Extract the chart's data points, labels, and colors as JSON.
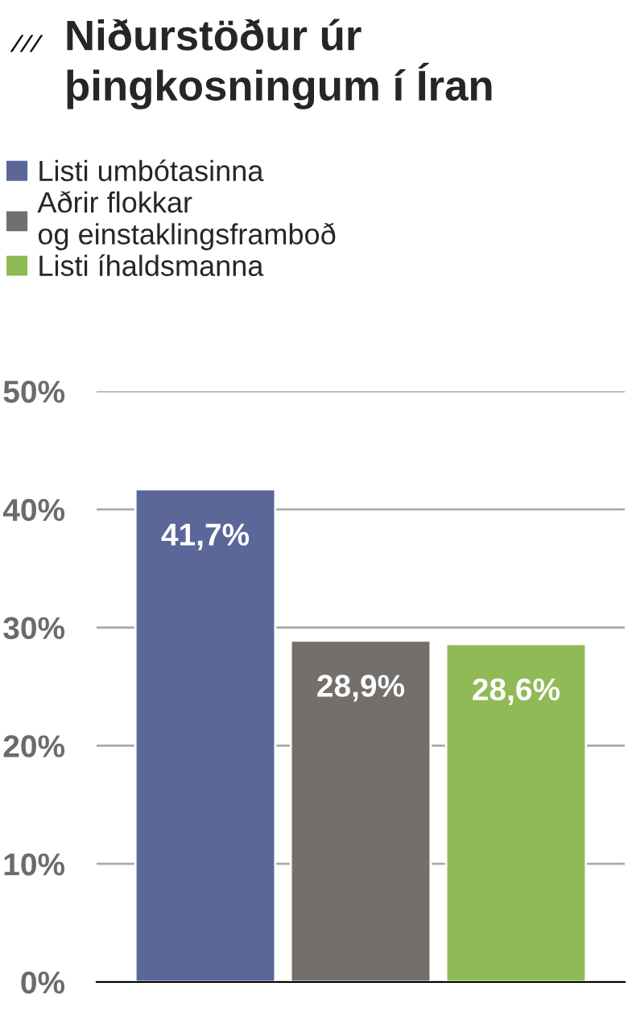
{
  "chart_data": {
    "type": "bar",
    "title": "Niðurstöður úr\nþingkosningum í Íran",
    "categories": [
      null,
      null,
      null
    ],
    "series": [
      {
        "name": "Listi umbótasinna",
        "color": "#5b6699",
        "values": [
          41.7,
          null,
          null
        ],
        "value_labels": [
          "41,7%",
          null,
          null
        ]
      },
      {
        "name": "Aðrir flokkar\nog einstaklingsframboð",
        "color": "#736f6c",
        "values": [
          null,
          28.9,
          null
        ],
        "value_labels": [
          null,
          "28,9%",
          null
        ]
      },
      {
        "name": "Listi íhaldsmanna",
        "color": "#8fba55",
        "values": [
          null,
          null,
          28.6
        ],
        "value_labels": [
          null,
          null,
          "28,6%"
        ]
      }
    ],
    "ylim": [
      0,
      50
    ],
    "yticks": [
      {
        "value": 0,
        "label": "0%"
      },
      {
        "value": 10,
        "label": "10%"
      },
      {
        "value": 20,
        "label": "20%"
      },
      {
        "value": 30,
        "label": "30%"
      },
      {
        "value": 40,
        "label": "40%"
      },
      {
        "value": 50,
        "label": "50%"
      }
    ],
    "grid": "y",
    "legend": "top left",
    "tick_labels": "y"
  }
}
